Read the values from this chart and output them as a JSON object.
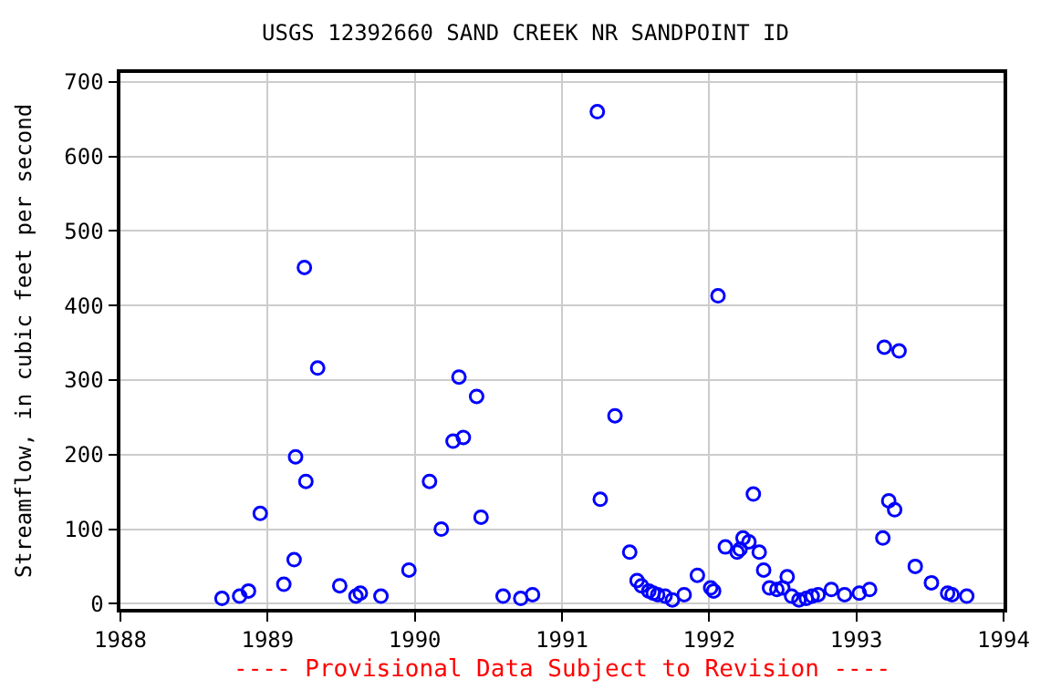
{
  "chart_data": {
    "type": "scatter",
    "title": "USGS 12392660 SAND CREEK NR SANDPOINT ID",
    "xlabel": null,
    "ylabel": "Streamflow, in cubic feet per second",
    "annotations": [
      "---- Provisional Data Subject to Revision ----"
    ],
    "x": [
      1988.69,
      1988.81,
      1988.87,
      1988.95,
      1989.11,
      1989.18,
      1989.19,
      1989.25,
      1989.26,
      1989.34,
      1989.49,
      1989.6,
      1989.63,
      1989.77,
      1989.96,
      1990.1,
      1990.18,
      1990.26,
      1990.3,
      1990.33,
      1990.42,
      1990.45,
      1990.6,
      1990.72,
      1990.8,
      1991.24,
      1991.26,
      1991.36,
      1991.46,
      1991.51,
      1991.54,
      1991.59,
      1991.62,
      1991.65,
      1991.7,
      1991.75,
      1991.83,
      1991.92,
      1992.01,
      1992.03,
      1992.06,
      1992.11,
      1992.19,
      1992.21,
      1992.23,
      1992.27,
      1992.3,
      1992.34,
      1992.37,
      1992.41,
      1992.46,
      1992.5,
      1992.53,
      1992.56,
      1992.61,
      1992.66,
      1992.7,
      1992.74,
      1992.83,
      1992.92,
      1993.02,
      1993.09,
      1993.18,
      1993.19,
      1993.22,
      1993.26,
      1993.29,
      1993.4,
      1993.51,
      1993.62,
      1993.65,
      1993.75
    ],
    "series": [
      {
        "color": "#0000ff",
        "values": [
          7,
          10,
          17,
          121,
          26,
          59,
          197,
          451,
          164,
          316,
          24,
          10,
          14,
          10,
          45,
          164,
          100,
          218,
          304,
          223,
          278,
          116,
          10,
          7,
          12,
          660,
          140,
          252,
          69,
          31,
          24,
          17,
          14,
          12,
          10,
          5,
          12,
          38,
          21,
          17,
          413,
          76,
          69,
          73,
          88,
          83,
          147,
          69,
          45,
          21,
          19,
          21,
          36,
          10,
          5,
          7,
          10,
          12,
          19,
          12,
          14,
          19,
          88,
          344,
          138,
          126,
          339,
          50,
          28,
          14,
          12,
          10
        ]
      }
    ],
    "xlim": [
      1988,
      1994
    ],
    "xticks": [
      1988,
      1989,
      1990,
      1991,
      1992,
      1993,
      1994
    ],
    "ylim": [
      -7,
      712
    ],
    "yticks": [
      0,
      100,
      200,
      300,
      400,
      500,
      600,
      700
    ],
    "grid": true,
    "marker": "circle"
  }
}
